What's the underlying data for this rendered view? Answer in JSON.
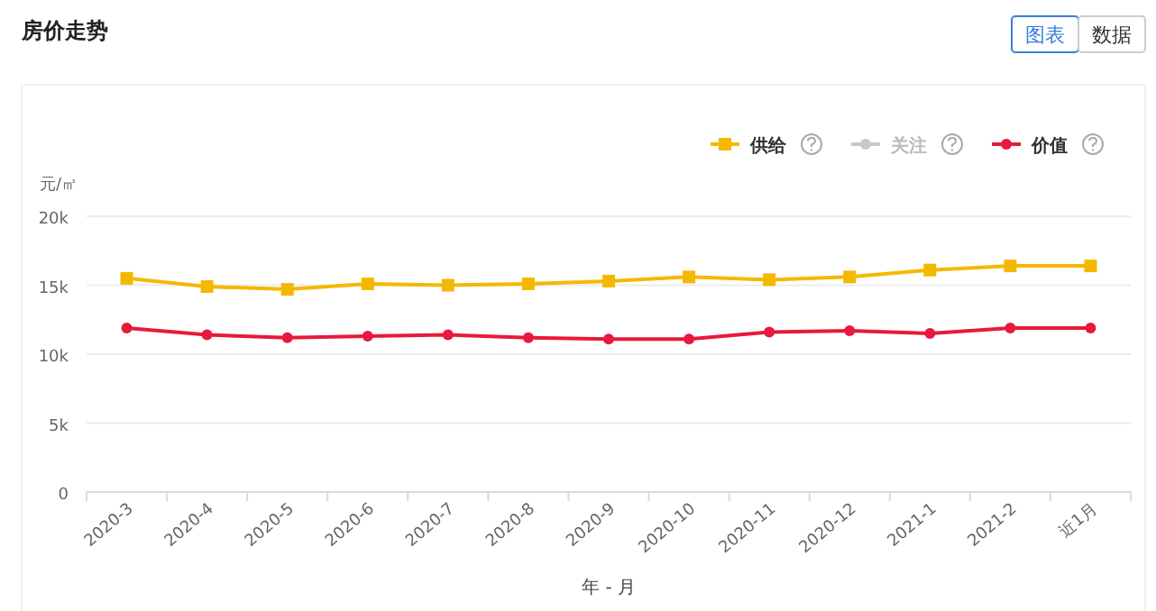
{
  "chart_data": {
    "type": "line",
    "title": "房价走势",
    "xlabel": "年 - 月",
    "ylabel": "元/㎡",
    "categories": [
      "2020-3",
      "2020-4",
      "2020-5",
      "2020-6",
      "2020-7",
      "2020-8",
      "2020-9",
      "2020-10",
      "2020-11",
      "2020-12",
      "2021-1",
      "2021-2",
      "近1月"
    ],
    "series": [
      {
        "name": "供给",
        "color": "#f5b800",
        "marker": "square",
        "values": [
          15500,
          14900,
          14700,
          15100,
          15000,
          15100,
          15300,
          15600,
          15400,
          15600,
          16100,
          16400,
          16400
        ]
      },
      {
        "name": "关注",
        "color": "#c8c8c8",
        "marker": "circle",
        "values": [
          null,
          null,
          null,
          null,
          null,
          null,
          null,
          null,
          null,
          null,
          null,
          null,
          null
        ]
      },
      {
        "name": "价值",
        "color": "#e8193c",
        "marker": "circle",
        "values": [
          11900,
          11400,
          11200,
          11300,
          11400,
          11200,
          11100,
          11100,
          11600,
          11700,
          11500,
          11900,
          11900
        ]
      }
    ],
    "ylim": [
      0,
      20000
    ],
    "yticks": [
      {
        "value": 0,
        "label": "0"
      },
      {
        "value": 5000,
        "label": "5k"
      },
      {
        "value": 10000,
        "label": "10k"
      },
      {
        "value": 15000,
        "label": "15k"
      },
      {
        "value": 20000,
        "label": "20k"
      }
    ],
    "grid": "y",
    "legend": "top right",
    "annotations": [
      "图表",
      "数据"
    ]
  }
}
